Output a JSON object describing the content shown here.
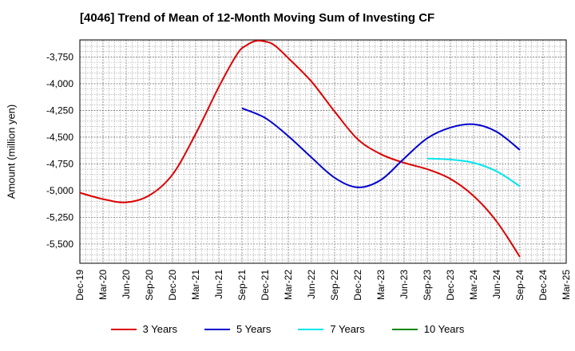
{
  "chart_data": {
    "type": "line",
    "title": "[4046]  Trend of Mean of 12-Month Moving Sum of Investing CF",
    "xlabel": "",
    "ylabel": "Amount (million yen)",
    "x_ticks": [
      "Dec-19",
      "Mar-20",
      "Jun-20",
      "Sep-20",
      "Dec-20",
      "Mar-21",
      "Jun-21",
      "Sep-21",
      "Dec-21",
      "Mar-22",
      "Jun-22",
      "Sep-22",
      "Dec-22",
      "Mar-23",
      "Jun-23",
      "Sep-23",
      "Dec-23",
      "Mar-24",
      "Jun-24",
      "Sep-24",
      "Dec-24",
      "Mar-25"
    ],
    "y_ticks": [
      -3750,
      -4000,
      -4250,
      -4500,
      -4750,
      -5000,
      -5250,
      -5500
    ],
    "y_tick_labels": [
      "-3,750",
      "-4,000",
      "-4,250",
      "-4,500",
      "-4,750",
      "-5,000",
      "-5,250",
      "-5,500"
    ],
    "ylim": [
      -5680,
      -3590
    ],
    "grid": true,
    "legend_position": "bottom",
    "series": [
      {
        "name": "3 Years",
        "color": "#dd0000",
        "x": [
          0,
          1,
          2,
          3,
          4,
          5,
          6,
          6.8,
          7.2,
          7.6,
          8,
          8.4,
          9,
          10,
          11,
          12,
          13,
          14,
          15,
          16,
          17,
          18,
          19
        ],
        "values": [
          -5020,
          -5080,
          -5110,
          -5045,
          -4850,
          -4470,
          -4030,
          -3720,
          -3640,
          -3600,
          -3605,
          -3640,
          -3760,
          -3980,
          -4260,
          -4520,
          -4660,
          -4740,
          -4800,
          -4890,
          -5050,
          -5290,
          -5620
        ]
      },
      {
        "name": "5 Years",
        "color": "#0000cc",
        "x": [
          7,
          8,
          9,
          10,
          11,
          12,
          13,
          14,
          15,
          16,
          17,
          18,
          19
        ],
        "values": [
          -4230,
          -4320,
          -4490,
          -4690,
          -4880,
          -4970,
          -4900,
          -4700,
          -4510,
          -4410,
          -4380,
          -4450,
          -4620
        ]
      },
      {
        "name": "7 Years",
        "color": "#00e5ee",
        "x": [
          15,
          16,
          17,
          18,
          19
        ],
        "values": [
          -4700,
          -4710,
          -4740,
          -4820,
          -4960
        ]
      },
      {
        "name": "10 Years",
        "color": "#008800",
        "x": [],
        "values": []
      }
    ]
  }
}
